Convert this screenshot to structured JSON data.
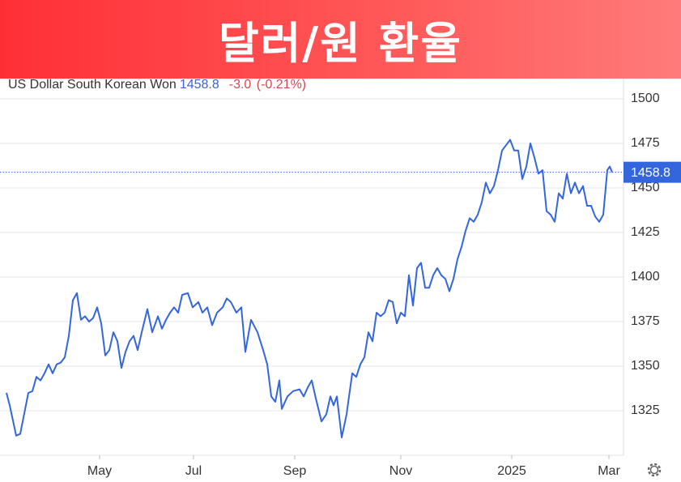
{
  "chart_data": {
    "type": "line",
    "title": "달러/원 환율",
    "subtitle": "US Dollar South Korean Won",
    "last_price": 1458.8,
    "change": "-3.0",
    "change_pct": "(-0.21%)",
    "color": "#3366dd",
    "x": [
      8,
      12,
      20,
      25,
      35,
      40,
      45,
      50,
      55,
      60,
      65,
      70,
      75,
      80,
      85,
      90,
      95,
      100,
      105,
      110,
      115,
      120,
      125,
      130,
      135,
      140,
      145,
      150,
      155,
      160,
      165,
      170,
      175,
      182,
      188,
      195,
      200,
      205,
      210,
      215,
      220,
      225,
      232,
      238,
      245,
      250,
      256,
      262,
      268,
      275,
      280,
      285,
      292,
      298,
      303,
      310,
      318,
      325,
      330,
      335,
      340,
      345,
      348,
      355,
      362,
      370,
      375,
      380,
      385,
      390,
      397,
      403,
      408,
      412,
      416,
      422,
      428,
      435,
      440,
      445,
      450,
      455,
      460,
      465,
      470,
      475,
      480,
      485,
      490,
      495,
      500,
      505,
      510,
      515,
      520,
      525,
      530,
      535,
      540,
      545,
      550,
      555,
      560,
      565,
      570,
      575,
      580,
      585,
      590,
      595,
      600,
      605,
      610,
      615,
      620,
      625,
      630,
      635,
      640,
      645,
      650,
      655,
      660,
      665,
      670,
      675,
      680,
      685,
      690,
      695,
      700,
      705,
      710,
      715,
      720,
      725,
      730,
      735,
      740,
      745,
      750,
      753,
      756
    ],
    "values": [
      1335,
      1328,
      1311,
      1312,
      1335,
      1336,
      1344,
      1342,
      1346,
      1351,
      1346,
      1351,
      1352,
      1355,
      1367,
      1387,
      1391,
      1376,
      1378,
      1375,
      1377,
      1383,
      1374,
      1356,
      1359,
      1369,
      1364,
      1349,
      1358,
      1364,
      1367,
      1359,
      1369,
      1382,
      1369,
      1378,
      1371,
      1376,
      1380,
      1383,
      1380,
      1390,
      1391,
      1383,
      1386,
      1380,
      1383,
      1373,
      1380,
      1383,
      1388,
      1386,
      1380,
      1383,
      1358,
      1376,
      1369,
      1359,
      1351,
      1333,
      1330,
      1342,
      1326,
      1333,
      1336,
      1337,
      1333,
      1338,
      1342,
      1332,
      1319,
      1323,
      1333,
      1328,
      1333,
      1310,
      1323,
      1346,
      1344,
      1351,
      1355,
      1369,
      1364,
      1380,
      1378,
      1380,
      1387,
      1386,
      1374,
      1380,
      1378,
      1401,
      1384,
      1405,
      1408,
      1394,
      1394,
      1401,
      1405,
      1401,
      1399,
      1392,
      1399,
      1410,
      1417,
      1426,
      1433,
      1431,
      1435,
      1442,
      1453,
      1447,
      1451,
      1460,
      1471,
      1474,
      1477,
      1471,
      1471,
      1455,
      1462,
      1475,
      1467,
      1458,
      1460,
      1437,
      1435,
      1431,
      1447,
      1444,
      1458,
      1447,
      1453,
      1447,
      1451,
      1440,
      1440,
      1434,
      1431,
      1435,
      1460,
      1462,
      1458.8
    ],
    "xlim": [
      0,
      770
    ],
    "xticks": [
      {
        "value": 123,
        "label": "May"
      },
      {
        "value": 239,
        "label": "Jul"
      },
      {
        "value": 364,
        "label": "Sep"
      },
      {
        "value": 495,
        "label": "Nov"
      },
      {
        "value": 632,
        "label": "2025"
      },
      {
        "value": 752,
        "label": "Mar"
      }
    ],
    "ylim": [
      1300,
      1510
    ],
    "yticks": [
      1325,
      1350,
      1375,
      1400,
      1425,
      1450,
      1475,
      1500
    ],
    "grid": true
  }
}
